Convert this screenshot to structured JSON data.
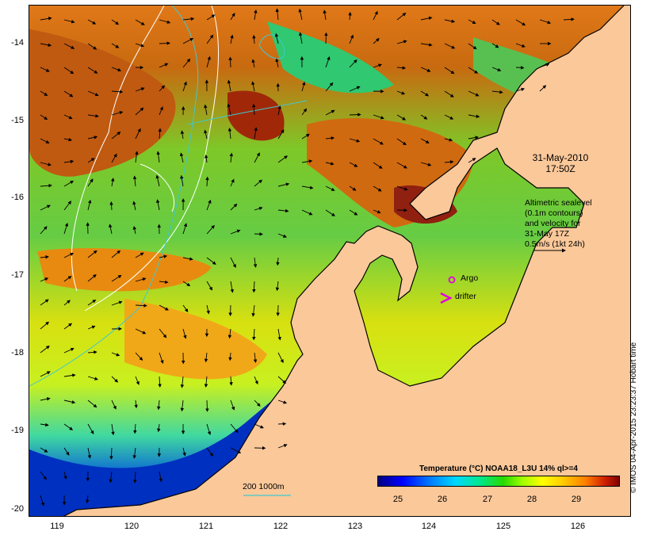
{
  "map": {
    "lon_range": [
      118.7,
      126.7
    ],
    "lat_range": [
      -20.12,
      -13.62
    ],
    "x_ticks": [
      "119",
      "120",
      "121",
      "122",
      "123",
      "124",
      "125",
      "126"
    ],
    "y_ticks": [
      "-14",
      "-15",
      "-16",
      "-17",
      "-18",
      "-19",
      "-20"
    ],
    "colors": {
      "land": "#fbc89a",
      "coast": "#000000",
      "contour_white": "#ffffff",
      "contour_cyan": "#40c8d0",
      "argo": "#e000e0",
      "drifter": "#e000e0"
    }
  },
  "annotations": {
    "date_line1": "31-May-2010",
    "date_line2": "17:50Z",
    "altimetry_lines": [
      "Altimetric sealevel",
      "(0.1m contours)",
      "and velocity for",
      "31-May 17Z",
      "0.5m/s (1kt 24h)"
    ],
    "argo_label": "Argo",
    "drifter_label": "drifter",
    "depth_label": "200  1000m"
  },
  "colorbar": {
    "title": "Temperature (°C) NOAA18_L3U 14% ql>=4",
    "ticks": [
      "25",
      "26",
      "27",
      "28",
      "29"
    ]
  },
  "credit": "© IMOS 04-Apr-2015 23:23:37 Hobart time"
}
